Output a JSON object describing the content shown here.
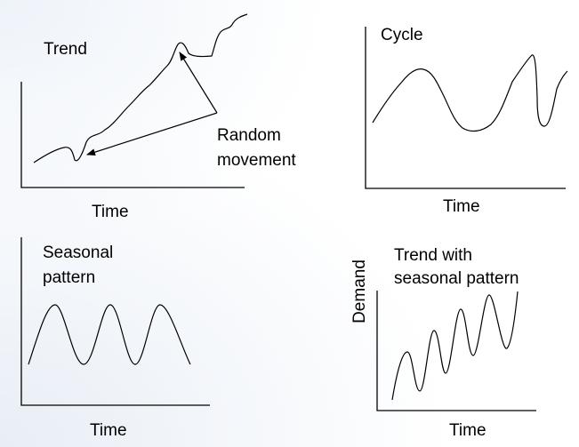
{
  "panels": {
    "trend": {
      "title": "Trend",
      "annotation_line1": "Random",
      "annotation_line2": "movement",
      "xlabel": "Time"
    },
    "cycle": {
      "title": "Cycle",
      "xlabel": "Time"
    },
    "seasonal": {
      "title_line1": "Seasonal",
      "title_line2": "pattern",
      "xlabel": "Time"
    },
    "trend_seasonal": {
      "title_line1": "Trend  with",
      "title_line2": "seasonal pattern",
      "ylabel": "Demand",
      "xlabel": "Time"
    }
  },
  "colors": {
    "line": "#000000",
    "background": "#ffffff"
  }
}
